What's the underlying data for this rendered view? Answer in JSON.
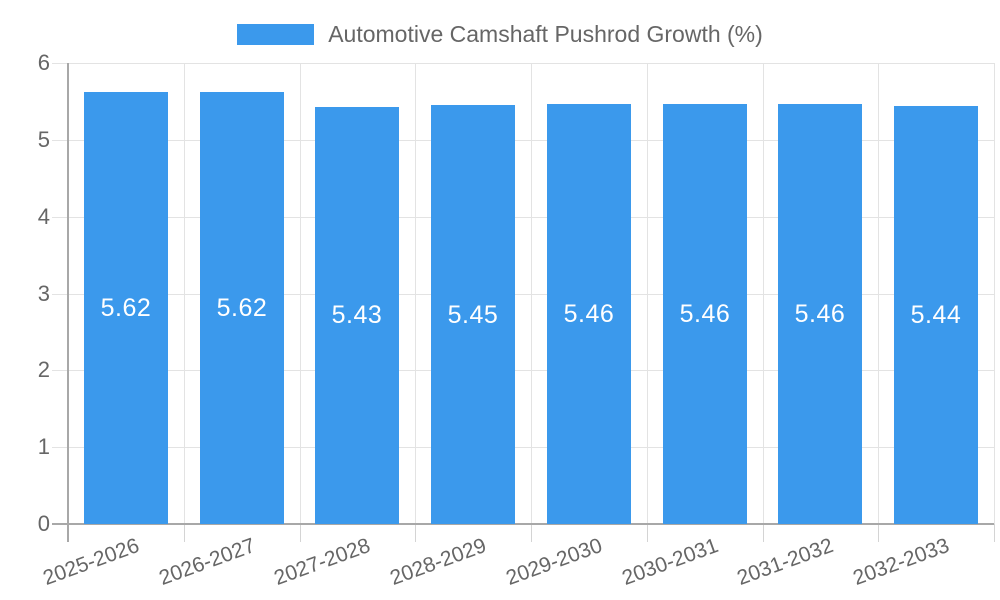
{
  "legend": {
    "label": "Automotive Camshaft Pushrod Growth (%)"
  },
  "colors": {
    "bar": "#3B99EC",
    "grid": "#E3E3E3",
    "axis": "#A8A8A8",
    "x_tick": "#D4D4D4",
    "text": "#666666",
    "bar_label": "#FFFFFF",
    "background": "#FFFFFF"
  },
  "chart_data": {
    "type": "bar",
    "title": "",
    "legend_entries": [
      "Automotive Camshaft Pushrod Growth (%)"
    ],
    "legend_position": "top",
    "categories": [
      "2025-2026",
      "2026-2027",
      "2027-2028",
      "2028-2029",
      "2029-2030",
      "2030-2031",
      "2031-2032",
      "2032-2033"
    ],
    "values": [
      5.62,
      5.62,
      5.43,
      5.45,
      5.46,
      5.46,
      5.46,
      5.44
    ],
    "data_labels": [
      "5.62",
      "5.62",
      "5.43",
      "5.45",
      "5.46",
      "5.46",
      "5.46",
      "5.44"
    ],
    "data_label_position": "center",
    "xlabel": "",
    "ylabel": "",
    "ylim": [
      0,
      6
    ],
    "yticks": [
      0,
      1,
      2,
      3,
      4,
      5,
      6
    ],
    "grid": true,
    "x_tick_rotation_deg": -20
  }
}
